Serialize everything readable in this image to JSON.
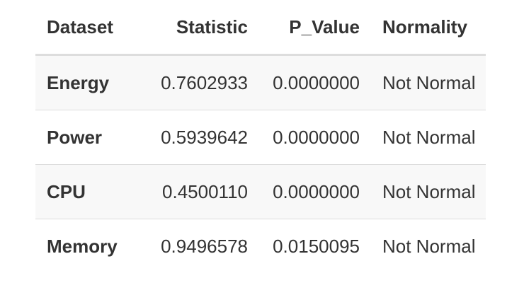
{
  "table": {
    "headers": [
      "Dataset",
      "Statistic",
      "P_Value",
      "Normality"
    ],
    "rows": [
      {
        "dataset": "Energy",
        "statistic": "0.7602933",
        "p_value": "0.0000000",
        "normality": "Not Normal"
      },
      {
        "dataset": "Power",
        "statistic": "0.5939642",
        "p_value": "0.0000000",
        "normality": "Not Normal"
      },
      {
        "dataset": "CPU",
        "statistic": "0.4500110",
        "p_value": "0.0000000",
        "normality": "Not Normal"
      },
      {
        "dataset": "Memory",
        "statistic": "0.9496578",
        "p_value": "0.0150095",
        "normality": "Not Normal"
      }
    ]
  },
  "colors": {
    "text": "#333333",
    "stripe": "#f8f8f8",
    "border": "#dddddd"
  }
}
